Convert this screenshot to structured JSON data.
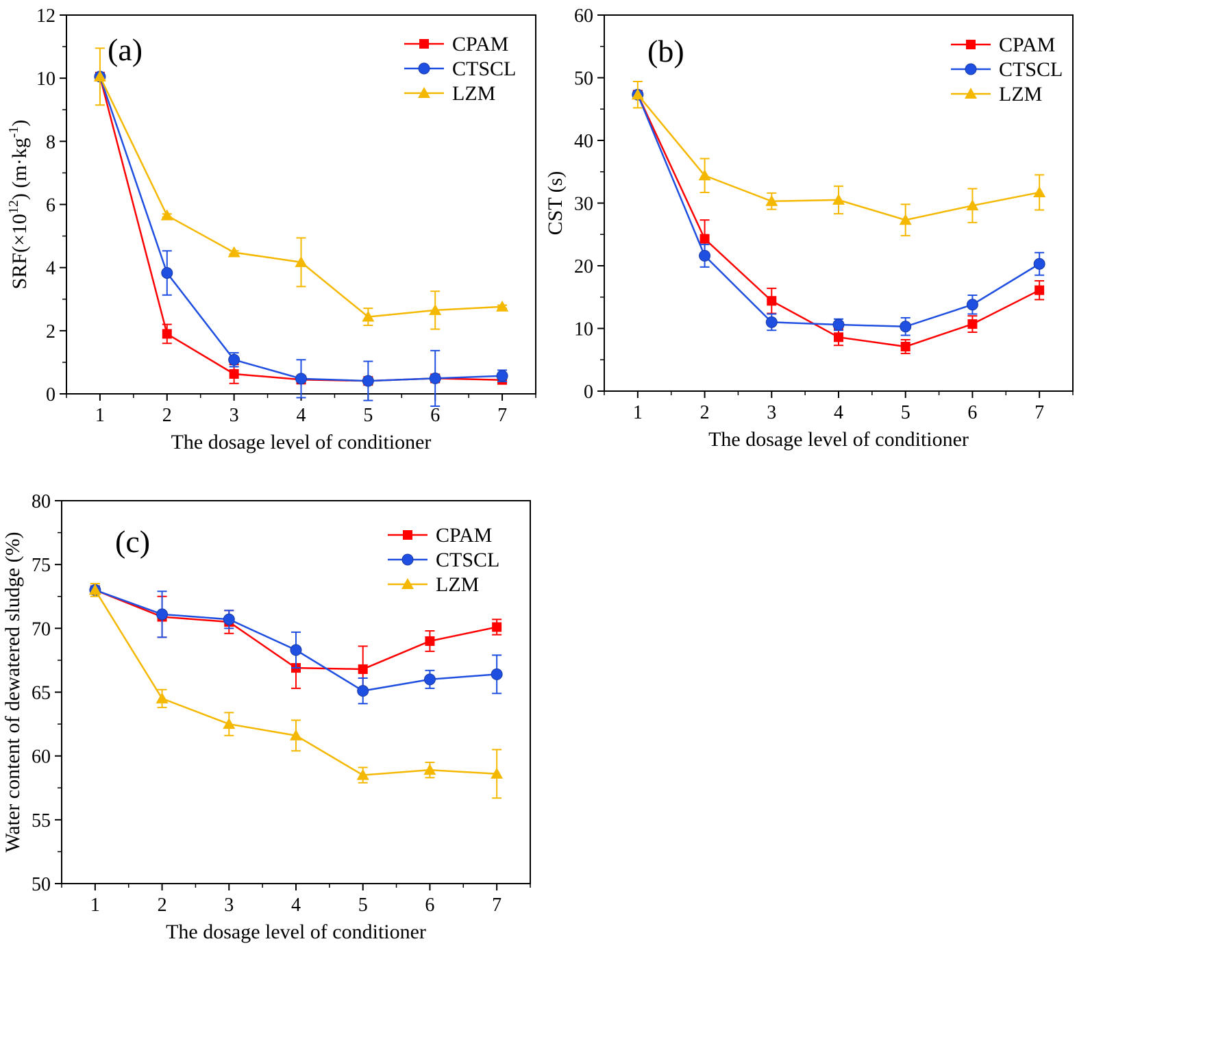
{
  "chart_data": [
    {
      "type": "line",
      "panel_label": "(a)",
      "xlabel": "The dosage level of conditioner",
      "ylabel_main": "SRF(×10",
      "ylabel_exp": "12",
      "ylabel_rest": ") (m·kg",
      "ylabel_exp2": "-1",
      "ylabel_end": ")",
      "x": [
        1,
        2,
        3,
        4,
        5,
        6,
        7
      ],
      "xlim": [
        0.5,
        7.5
      ],
      "ylim": [
        0,
        12
      ],
      "yticks": [
        0,
        2,
        4,
        6,
        8,
        10,
        12
      ],
      "legend_position": "top-right",
      "series": [
        {
          "name": "CPAM",
          "color": "#ff0000",
          "marker": "square",
          "values": [
            10.05,
            1.9,
            0.63,
            0.45,
            0.41,
            0.49,
            0.44
          ],
          "errors": [
            0,
            0.3,
            0.3,
            0.05,
            0.05,
            0.05,
            0.05
          ]
        },
        {
          "name": "CTSCL",
          "color": "#1f4fe0",
          "marker": "circle",
          "values": [
            10.05,
            3.83,
            1.08,
            0.48,
            0.41,
            0.49,
            0.57
          ],
          "errors": [
            0,
            0.7,
            0.22,
            0.6,
            0.62,
            0.88,
            0.18
          ]
        },
        {
          "name": "LZM",
          "color": "#f5b800",
          "marker": "triangle",
          "values": [
            10.05,
            5.65,
            4.48,
            4.17,
            2.44,
            2.65,
            2.76
          ],
          "errors": [
            0.9,
            0.05,
            0.05,
            0.77,
            0.27,
            0.6,
            0.05
          ]
        }
      ]
    },
    {
      "type": "line",
      "panel_label": "(b)",
      "xlabel": "The dosage level of conditioner",
      "ylabel": "CST (s)",
      "x": [
        1,
        2,
        3,
        4,
        5,
        6,
        7
      ],
      "xlim": [
        0.5,
        7.5
      ],
      "ylim": [
        0,
        60
      ],
      "yticks": [
        0,
        10,
        20,
        30,
        40,
        50,
        60
      ],
      "legend_position": "top-right",
      "series": [
        {
          "name": "CPAM",
          "color": "#ff0000",
          "marker": "square",
          "values": [
            47.3,
            24.3,
            14.4,
            8.6,
            7.1,
            10.7,
            16.1
          ],
          "errors": [
            0.5,
            3.0,
            2.0,
            1.3,
            1.1,
            1.3,
            1.5
          ]
        },
        {
          "name": "CTSCL",
          "color": "#1f4fe0",
          "marker": "circle",
          "values": [
            47.3,
            21.6,
            11.0,
            10.6,
            10.3,
            13.8,
            20.3
          ],
          "errors": [
            0.5,
            1.8,
            1.3,
            0.9,
            1.4,
            1.5,
            1.8
          ]
        },
        {
          "name": "LZM",
          "color": "#f5b800",
          "marker": "triangle",
          "values": [
            47.3,
            34.4,
            30.3,
            30.5,
            27.3,
            29.6,
            31.7
          ],
          "errors": [
            2.1,
            2.7,
            1.3,
            2.2,
            2.5,
            2.7,
            2.8
          ]
        }
      ]
    },
    {
      "type": "line",
      "panel_label": "(c)",
      "xlabel": "The dosage level of conditioner",
      "ylabel": "Water content of dewatered sludge (%)",
      "x": [
        1,
        2,
        3,
        4,
        5,
        6,
        7
      ],
      "xlim": [
        0.5,
        7.5
      ],
      "ylim": [
        50,
        80
      ],
      "yticks": [
        50,
        55,
        60,
        65,
        70,
        75,
        80
      ],
      "legend_position": "top-right",
      "series": [
        {
          "name": "CPAM",
          "color": "#ff0000",
          "marker": "square",
          "values": [
            73.0,
            70.9,
            70.5,
            66.9,
            66.8,
            69.0,
            70.1
          ],
          "errors": [
            0.3,
            1.6,
            0.9,
            1.6,
            1.8,
            0.8,
            0.6
          ]
        },
        {
          "name": "CTSCL",
          "color": "#1f4fe0",
          "marker": "circle",
          "values": [
            73.0,
            71.1,
            70.7,
            68.3,
            65.1,
            66.0,
            66.4
          ],
          "errors": [
            0.3,
            1.8,
            0.7,
            1.4,
            1.0,
            0.7,
            1.5
          ]
        },
        {
          "name": "LZM",
          "color": "#f5b800",
          "marker": "triangle",
          "values": [
            73.0,
            64.5,
            62.5,
            61.6,
            58.5,
            58.9,
            58.6
          ],
          "errors": [
            0.5,
            0.7,
            0.9,
            1.2,
            0.6,
            0.6,
            1.9
          ]
        }
      ]
    }
  ]
}
